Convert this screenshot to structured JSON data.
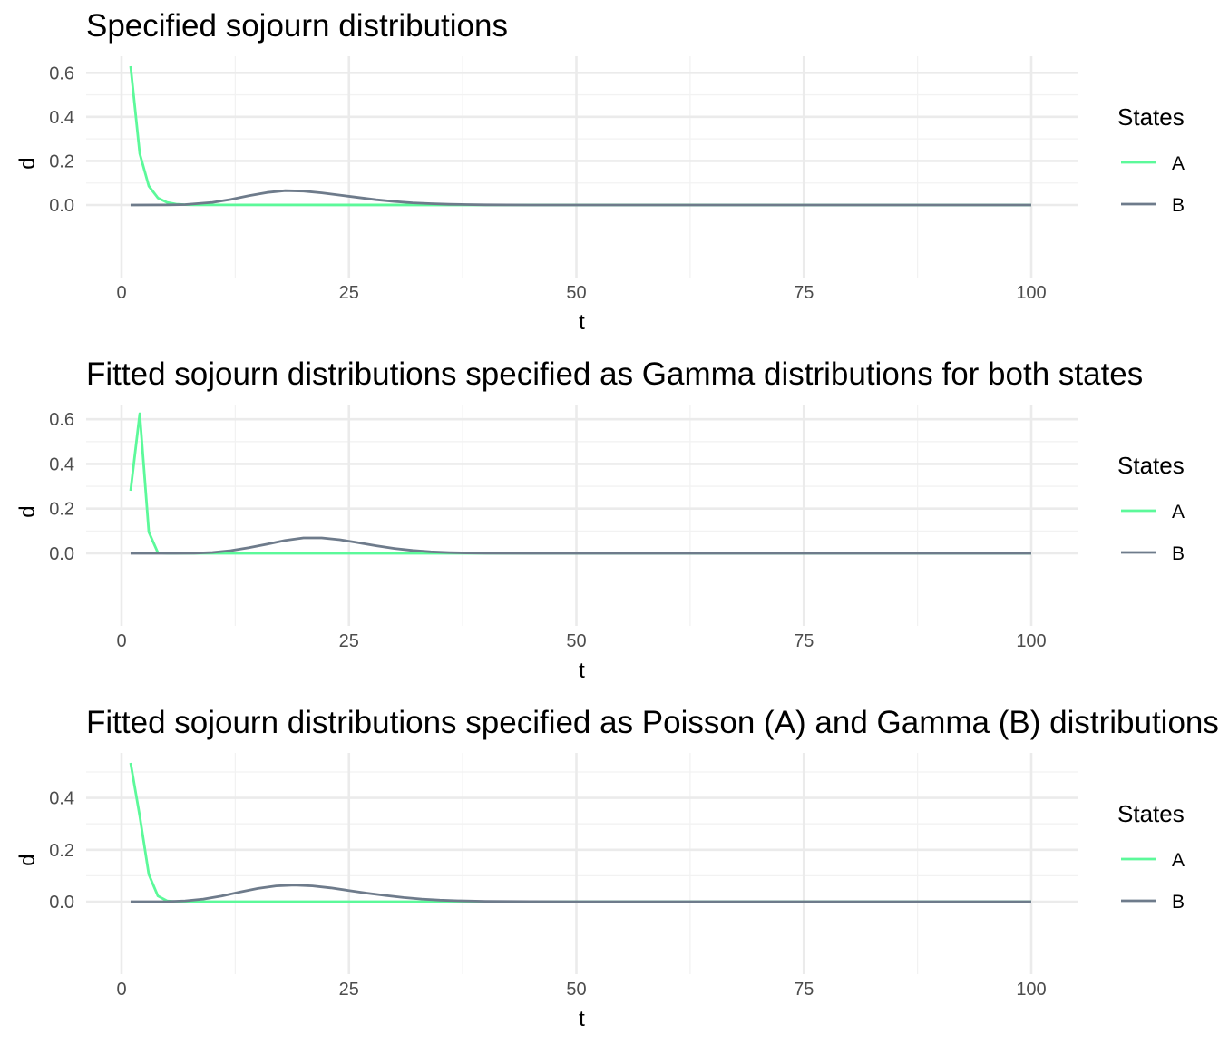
{
  "chart_data": [
    {
      "type": "line",
      "title": "Specified sojourn distributions",
      "xlabel": "t",
      "ylabel": "d",
      "xlim": [
        0,
        100
      ],
      "ylim": [
        0,
        0.63
      ],
      "xticks": [
        0,
        25,
        50,
        75,
        100
      ],
      "yticks": [
        0.0,
        0.2,
        0.4,
        0.6
      ],
      "ytick_labels": [
        "0.0",
        "0.2",
        "0.4",
        "0.6"
      ],
      "grid": true,
      "legend": {
        "title": "States",
        "placement": "right"
      },
      "series": [
        {
          "name": "A",
          "color": "#5cf99a",
          "x": [
            1,
            2,
            3,
            4,
            5,
            6,
            7,
            8,
            100
          ],
          "y": [
            0.63,
            0.233,
            0.086,
            0.032,
            0.012,
            0.004,
            0.0015,
            0.0005,
            0
          ]
        },
        {
          "name": "B",
          "color": "#6e7b8b",
          "x": [
            1,
            5,
            7,
            10,
            12,
            14,
            16,
            18,
            20,
            22,
            24,
            26,
            28,
            30,
            32,
            34,
            36,
            38,
            40,
            45,
            50,
            60,
            100
          ],
          "y": [
            0,
            0.0005,
            0.002,
            0.012,
            0.025,
            0.042,
            0.057,
            0.065,
            0.063,
            0.055,
            0.045,
            0.034,
            0.024,
            0.016,
            0.01,
            0.006,
            0.0035,
            0.002,
            0.001,
            0.0002,
            0,
            0,
            0
          ]
        }
      ]
    },
    {
      "type": "line",
      "title": "Fitted sojourn distributions specified as Gamma distributions for both states",
      "xlabel": "t",
      "ylabel": "d",
      "xlim": [
        0,
        100
      ],
      "ylim": [
        0,
        0.625
      ],
      "xticks": [
        0,
        25,
        50,
        75,
        100
      ],
      "yticks": [
        0.0,
        0.2,
        0.4,
        0.6
      ],
      "ytick_labels": [
        "0.0",
        "0.2",
        "0.4",
        "0.6"
      ],
      "grid": true,
      "legend": {
        "title": "States",
        "placement": "right"
      },
      "series": [
        {
          "name": "A",
          "color": "#5cf99a",
          "x": [
            1,
            2,
            3,
            4,
            5,
            100
          ],
          "y": [
            0.28,
            0.625,
            0.095,
            0.003,
            0,
            0
          ]
        },
        {
          "name": "B",
          "color": "#6e7b8b",
          "x": [
            1,
            6,
            8,
            10,
            12,
            14,
            16,
            18,
            20,
            22,
            24,
            26,
            28,
            30,
            32,
            34,
            36,
            38,
            40,
            45,
            50,
            100
          ],
          "y": [
            0,
            0.0002,
            0.001,
            0.004,
            0.012,
            0.025,
            0.041,
            0.058,
            0.069,
            0.069,
            0.061,
            0.048,
            0.034,
            0.022,
            0.013,
            0.007,
            0.0035,
            0.0017,
            0.0008,
            0.0001,
            0,
            0
          ]
        }
      ]
    },
    {
      "type": "line",
      "title": "Fitted sojourn distributions specified as Poisson (A) and Gamma (B) distributions",
      "xlabel": "t",
      "ylabel": "d",
      "xlim": [
        0,
        100
      ],
      "ylim": [
        0,
        0.535
      ],
      "xticks": [
        0,
        25,
        50,
        75,
        100
      ],
      "yticks": [
        0.0,
        0.2,
        0.4
      ],
      "ytick_labels": [
        "0.0",
        "0.2",
        "0.4"
      ],
      "grid": true,
      "legend": {
        "title": "States",
        "placement": "right"
      },
      "series": [
        {
          "name": "A",
          "color": "#5cf99a",
          "x": [
            1,
            2,
            3,
            4,
            5,
            6,
            100
          ],
          "y": [
            0.535,
            0.33,
            0.105,
            0.022,
            0.003,
            0,
            0
          ]
        },
        {
          "name": "B",
          "color": "#6e7b8b",
          "x": [
            1,
            5,
            7,
            9,
            11,
            13,
            15,
            17,
            19,
            21,
            23,
            25,
            27,
            29,
            31,
            33,
            35,
            37,
            40,
            45,
            50,
            100
          ],
          "y": [
            0,
            0.0005,
            0.003,
            0.01,
            0.022,
            0.037,
            0.051,
            0.061,
            0.064,
            0.061,
            0.053,
            0.043,
            0.033,
            0.024,
            0.016,
            0.01,
            0.006,
            0.0035,
            0.0013,
            0.0002,
            0,
            0
          ]
        }
      ]
    }
  ]
}
